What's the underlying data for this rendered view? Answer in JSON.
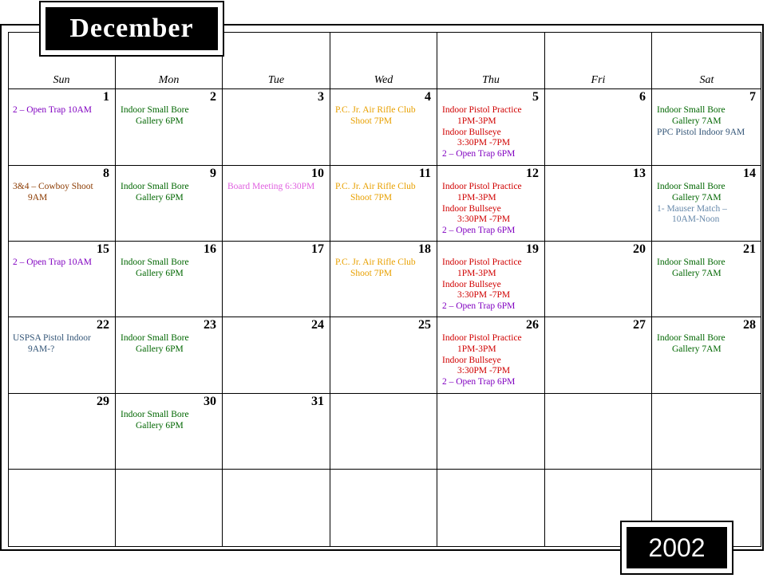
{
  "month": "December",
  "year": "2002",
  "weekdays": [
    "Sun",
    "Mon",
    "Tue",
    "Wed",
    "Thu",
    "Fri",
    "Sat"
  ],
  "colors": {
    "purple": "#8000c0",
    "green": "#006600",
    "orange": "#e8a000",
    "red": "#d00000",
    "brown": "#8b3a00",
    "pink": "#e060e0",
    "slate": "#335577",
    "gray": "#6688aa"
  },
  "weeks": [
    [
      {
        "day": "1",
        "events": [
          {
            "l1": "2 – Open Trap  10AM",
            "color": "#8000c0"
          }
        ]
      },
      {
        "day": "2",
        "events": [
          {
            "l1": "Indoor Small Bore",
            "l2": "Gallery 6PM",
            "color": "#006600"
          }
        ]
      },
      {
        "day": "3",
        "events": []
      },
      {
        "day": "4",
        "events": [
          {
            "l1": "P.C. Jr. Air Rifle Club",
            "l2": "Shoot   7PM",
            "color": "#e8a000"
          }
        ]
      },
      {
        "day": "5",
        "events": [
          {
            "l1": "Indoor Pistol Practice",
            "l2": "1PM-3PM",
            "color": "#d00000"
          },
          {
            "l1": "Indoor  Bullseye",
            "l2": "3:30PM -7PM",
            "color": "#d00000"
          },
          {
            "l1": "2 – Open Trap  6PM",
            "color": "#8000c0"
          }
        ]
      },
      {
        "day": "6",
        "events": []
      },
      {
        "day": "7",
        "events": [
          {
            "l1": "Indoor Small Bore",
            "l2": "Gallery 7AM",
            "color": "#006600"
          },
          {
            "l1": "PPC Pistol Indoor  9AM",
            "color": "#335577"
          }
        ]
      }
    ],
    [
      {
        "day": "8",
        "events": [
          {
            "l1": "3&4 – Cowboy Shoot",
            "l2": "9AM",
            "color": "#8b3a00"
          }
        ]
      },
      {
        "day": "9",
        "events": [
          {
            "l1": "Indoor Small Bore",
            "l2": "Gallery 6PM",
            "color": "#006600"
          }
        ]
      },
      {
        "day": "10",
        "events": [
          {
            "l1": "Board Meeting  6:30PM",
            "color": "#e060e0"
          }
        ]
      },
      {
        "day": "11",
        "events": [
          {
            "l1": "P.C. Jr. Air Rifle Club",
            "l2": "Shoot   7PM",
            "color": "#e8a000"
          }
        ]
      },
      {
        "day": "12",
        "events": [
          {
            "l1": "Indoor Pistol Practice",
            "l2": "1PM-3PM",
            "color": "#d00000"
          },
          {
            "l1": "Indoor  Bullseye",
            "l2": "3:30PM -7PM",
            "color": "#d00000"
          },
          {
            "l1": "2 – Open Trap  6PM",
            "color": "#8000c0"
          }
        ]
      },
      {
        "day": "13",
        "events": []
      },
      {
        "day": "14",
        "events": [
          {
            "l1": "Indoor Small Bore",
            "l2": "Gallery 7AM",
            "color": "#006600"
          },
          {
            "l1": "1- Mauser Match –",
            "l2": "10AM-Noon",
            "color": "#6688aa"
          }
        ]
      }
    ],
    [
      {
        "day": "15",
        "events": [
          {
            "l1": "2 – Open Trap  10AM",
            "color": "#8000c0"
          }
        ]
      },
      {
        "day": "16",
        "events": [
          {
            "l1": "Indoor Small Bore",
            "l2": "Gallery 6PM",
            "color": "#006600"
          }
        ]
      },
      {
        "day": "17",
        "events": []
      },
      {
        "day": "18",
        "events": [
          {
            "l1": "P.C. Jr. Air Rifle Club",
            "l2": "Shoot   7PM",
            "color": "#e8a000"
          }
        ]
      },
      {
        "day": "19",
        "events": [
          {
            "l1": "Indoor Pistol Practice",
            "l2": "1PM-3PM",
            "color": "#d00000"
          },
          {
            "l1": "Indoor  Bullseye",
            "l2": "3:30PM -7PM",
            "color": "#d00000"
          },
          {
            "l1": "2 – Open Trap  6PM",
            "color": "#8000c0"
          }
        ]
      },
      {
        "day": "20",
        "events": []
      },
      {
        "day": "21",
        "events": [
          {
            "l1": "Indoor Small Bore",
            "l2": "Gallery 7AM",
            "color": "#006600"
          }
        ]
      }
    ],
    [
      {
        "day": "22",
        "events": [
          {
            "l1": "USPSA Pistol Indoor",
            "l2": "9AM-?",
            "color": "#335577"
          }
        ]
      },
      {
        "day": "23",
        "events": [
          {
            "l1": "Indoor Small Bore",
            "l2": "Gallery 6PM",
            "color": "#006600"
          }
        ]
      },
      {
        "day": "24",
        "events": []
      },
      {
        "day": "25",
        "events": []
      },
      {
        "day": "26",
        "events": [
          {
            "l1": "Indoor Pistol Practice",
            "l2": "1PM-3PM",
            "color": "#d00000"
          },
          {
            "l1": "Indoor  Bullseye",
            "l2": "3:30PM -7PM",
            "color": "#d00000"
          },
          {
            "l1": "2 – Open Trap  6PM",
            "color": "#8000c0"
          }
        ]
      },
      {
        "day": "27",
        "events": []
      },
      {
        "day": "28",
        "events": [
          {
            "l1": "Indoor Small Bore",
            "l2": "Gallery 7AM",
            "color": "#006600"
          }
        ]
      }
    ],
    [
      {
        "day": "29",
        "events": []
      },
      {
        "day": "30",
        "events": [
          {
            "l1": "Indoor Small Bore",
            "l2": "Gallery 6PM",
            "color": "#006600"
          }
        ]
      },
      {
        "day": "31",
        "events": []
      },
      {
        "day": "",
        "events": []
      },
      {
        "day": "",
        "events": []
      },
      {
        "day": "",
        "events": []
      },
      {
        "day": "",
        "events": []
      }
    ],
    [
      {
        "day": "",
        "events": []
      },
      {
        "day": "",
        "events": []
      },
      {
        "day": "",
        "events": []
      },
      {
        "day": "",
        "events": []
      },
      {
        "day": "",
        "events": []
      },
      {
        "day": "",
        "events": []
      },
      {
        "day": "",
        "events": []
      }
    ]
  ]
}
